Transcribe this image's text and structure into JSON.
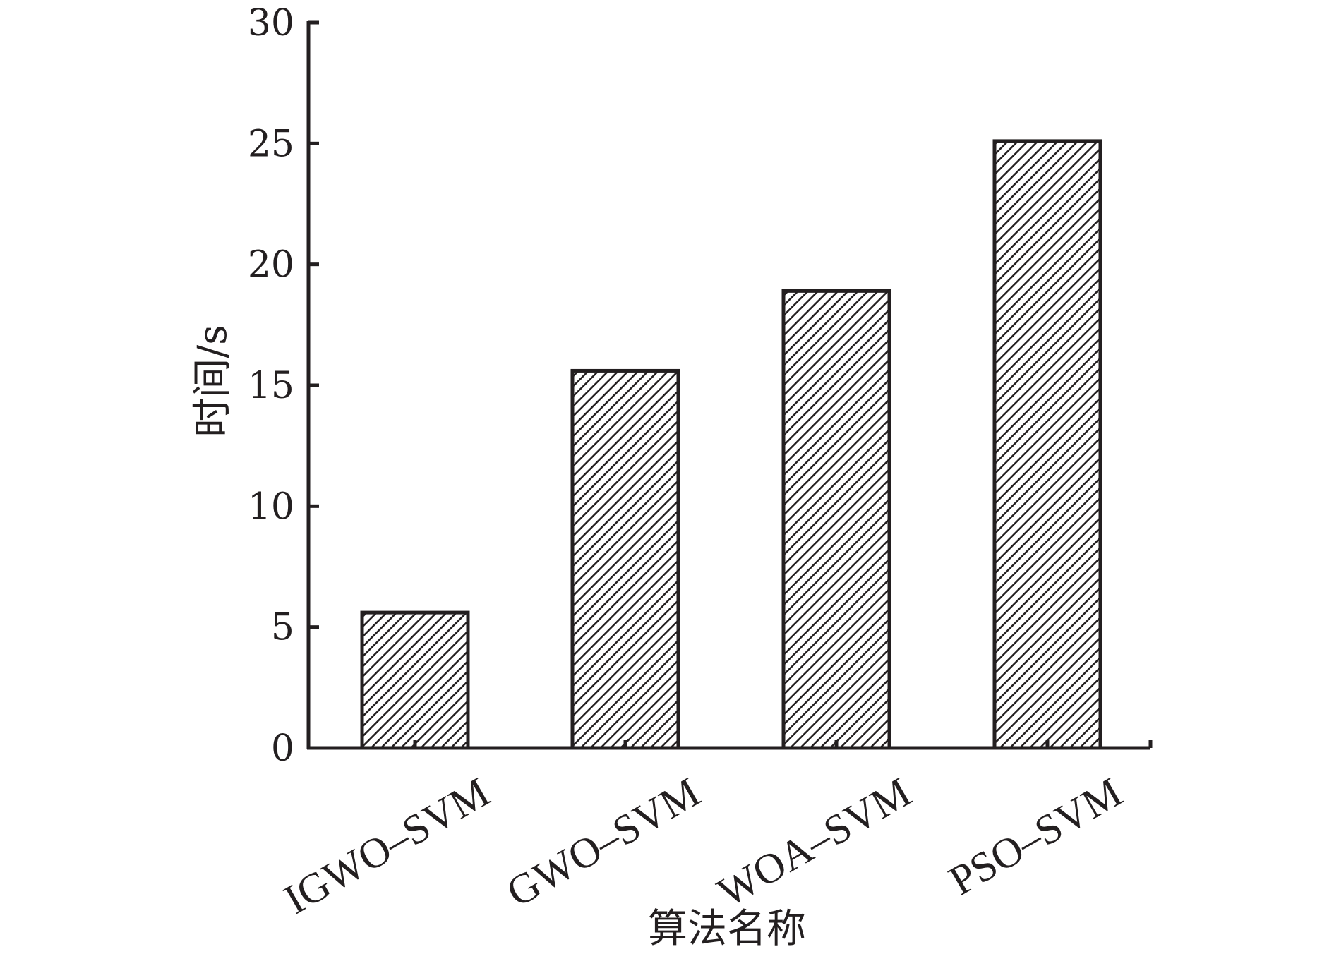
{
  "chart_data": {
    "type": "bar",
    "categories": [
      "IGWO–SVM",
      "GWO–SVM",
      "WOA–SVM",
      "PSO–SVM"
    ],
    "values": [
      5.6,
      15.6,
      18.9,
      25.1
    ],
    "xlabel": "算法名称",
    "ylabel": "时间/s",
    "ylim": [
      0,
      30
    ],
    "yticks": [
      0,
      5,
      10,
      15,
      20,
      25,
      30
    ],
    "grid": false,
    "legend": "none",
    "bar_fill": "hatched",
    "colors": {
      "axis": "#231f20",
      "bar_stroke": "#231f20",
      "hatch": "#231f20",
      "bar_bg": "#ffffff"
    }
  }
}
